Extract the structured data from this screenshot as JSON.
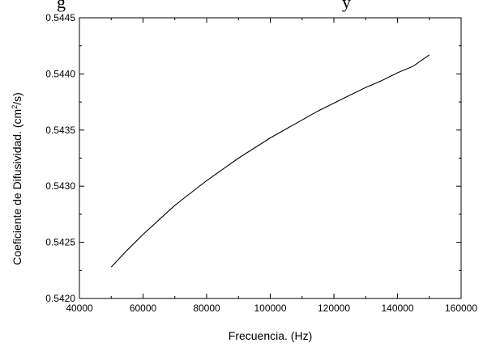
{
  "header_fragment": "g                                                              y",
  "chart_data": {
    "type": "line",
    "title": "",
    "xlabel": "Frecuencia. (Hz)",
    "ylabel_parts": [
      "Coeficiente de Difusividad. (cm",
      "2",
      "/s)"
    ],
    "xlim": [
      40000,
      160000
    ],
    "ylim": [
      0.542,
      0.5445
    ],
    "xticks": [
      40000,
      60000,
      80000,
      100000,
      120000,
      140000,
      160000
    ],
    "xtick_labels": [
      "40000",
      "60000",
      "80000",
      "100000",
      "120000",
      "140000",
      "160000"
    ],
    "yticks": [
      0.542,
      0.5425,
      0.543,
      0.5435,
      0.544,
      0.5445
    ],
    "ytick_labels": [
      "0.5420",
      "0.5425",
      "0.5430",
      "0.5435",
      "0.5440",
      "0.5445"
    ],
    "grid": false,
    "series": [
      {
        "color": "#000000",
        "x": [
          50000,
          55000,
          60000,
          65000,
          70000,
          75000,
          80000,
          85000,
          90000,
          95000,
          100000,
          105000,
          110000,
          115000,
          120000,
          125000,
          130000,
          135000,
          140000,
          145000,
          150000
        ],
        "y": [
          0.54228,
          0.54243,
          0.54257,
          0.5427,
          0.54283,
          0.54294,
          0.54305,
          0.54315,
          0.54325,
          0.54334,
          0.54343,
          0.54351,
          0.54359,
          0.54367,
          0.54374,
          0.54381,
          0.54388,
          0.54394,
          0.54401,
          0.54407,
          0.54417
        ]
      }
    ]
  }
}
